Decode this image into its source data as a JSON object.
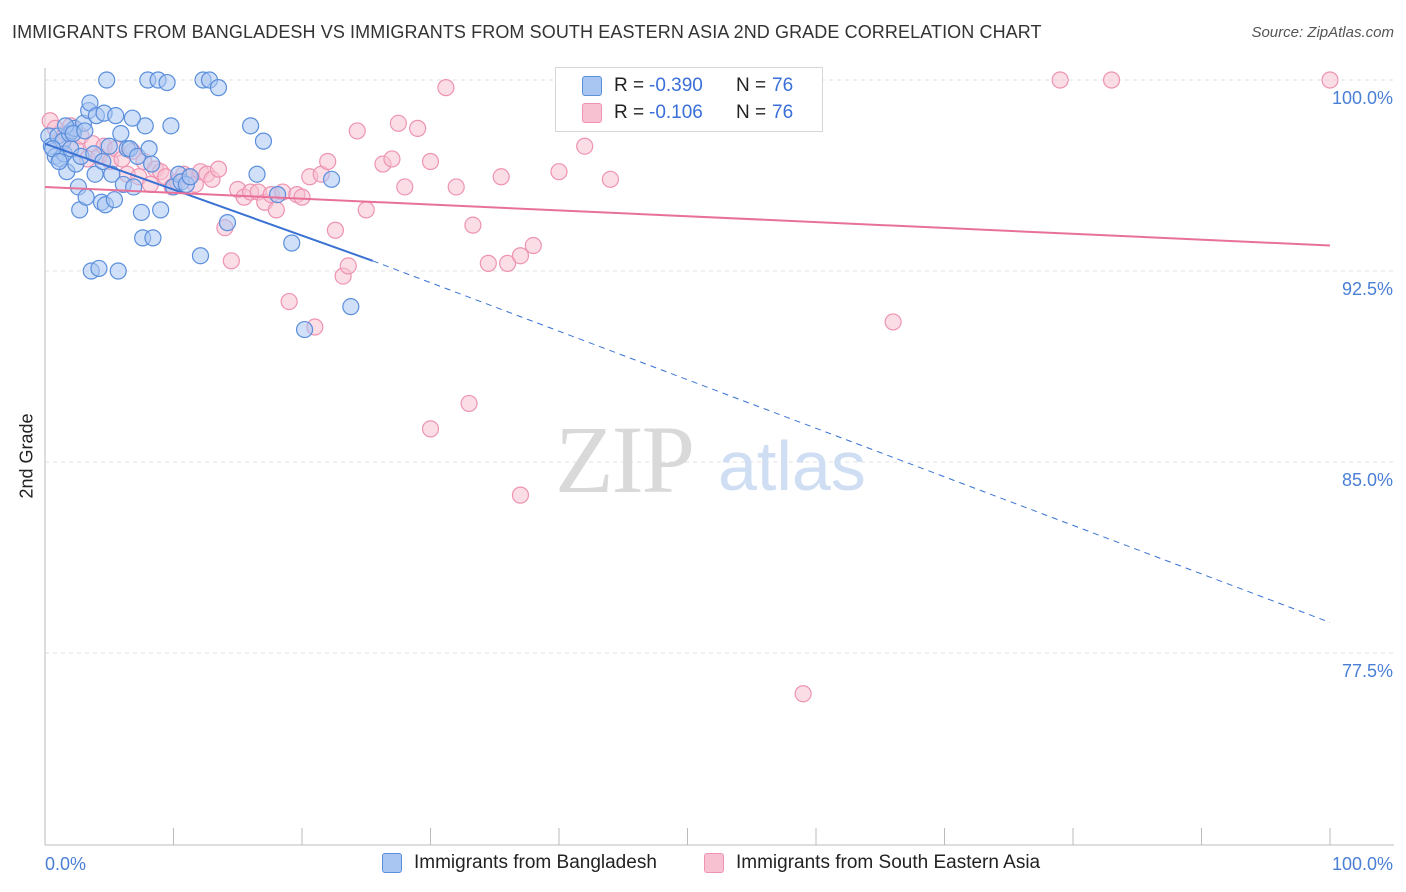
{
  "header": {
    "title": "IMMIGRANTS FROM BANGLADESH VS IMMIGRANTS FROM SOUTH EASTERN ASIA 2ND GRADE CORRELATION CHART",
    "source": "Source: ZipAtlas.com"
  },
  "watermark": {
    "zip": "ZIP",
    "atlas": "atlas"
  },
  "legend": {
    "rows": [
      {
        "r_label": "R =",
        "r_value": "-0.390",
        "n_label": "N =",
        "n_value": "76"
      },
      {
        "r_label": "R =",
        "r_value": "-0.106",
        "n_label": "N =",
        "n_value": "76"
      }
    ]
  },
  "bottom_legend": {
    "series1": "Immigrants from Bangladesh",
    "series2": "Immigrants from South Eastern Asia"
  },
  "colors": {
    "blue_fill": "#a9c6f2",
    "blue_stroke": "#5b8fdc",
    "blue_line": "#3a72d4",
    "pink_fill": "#f7c1d2",
    "pink_stroke": "#ee93b2",
    "pink_line": "#e8719a",
    "axis_text": "#4a7fd6",
    "grid": "#e2e2e2"
  },
  "chart_data": {
    "type": "scatter",
    "title": "IMMIGRANTS FROM BANGLADESH VS IMMIGRANTS FROM SOUTH EASTERN ASIA 2ND GRADE CORRELATION CHART",
    "xlabel": "",
    "ylabel": "2nd Grade",
    "xlim": [
      0,
      100
    ],
    "ylim": [
      70.0,
      101.0
    ],
    "x_tick_labels": [
      {
        "value": 0,
        "label": "0.0%"
      },
      {
        "value": 100,
        "label": "100.0%"
      }
    ],
    "y_ticks": [
      {
        "value": 100.0,
        "label": "100.0%"
      },
      {
        "value": 92.5,
        "label": "92.5%"
      },
      {
        "value": 85.0,
        "label": "85.0%"
      },
      {
        "value": 77.5,
        "label": "77.5%"
      }
    ],
    "grid": true,
    "series": [
      {
        "name": "Immigrants from Bangladesh",
        "color": "blue",
        "r": -0.39,
        "n": 76,
        "trend": {
          "x0": 0,
          "y0": 97.5,
          "x1_solid": 25.5,
          "y1_solid": 92.9,
          "x1": 100,
          "y1": 78.7
        },
        "points": [
          [
            0.3,
            97.8
          ],
          [
            0.5,
            97.4
          ],
          [
            0.8,
            97.0
          ],
          [
            1.0,
            97.8
          ],
          [
            1.2,
            96.9
          ],
          [
            1.4,
            97.6
          ],
          [
            1.5,
            97.1
          ],
          [
            1.7,
            96.4
          ],
          [
            1.9,
            97.9
          ],
          [
            2.0,
            97.3
          ],
          [
            2.1,
            98.0
          ],
          [
            2.3,
            98.1
          ],
          [
            2.4,
            96.7
          ],
          [
            2.6,
            95.8
          ],
          [
            2.7,
            94.9
          ],
          [
            2.8,
            97.0
          ],
          [
            3.0,
            98.3
          ],
          [
            3.2,
            95.4
          ],
          [
            3.4,
            98.8
          ],
          [
            3.5,
            99.1
          ],
          [
            3.6,
            92.5
          ],
          [
            3.8,
            97.1
          ],
          [
            3.9,
            96.3
          ],
          [
            4.0,
            98.6
          ],
          [
            4.2,
            92.6
          ],
          [
            4.4,
            95.2
          ],
          [
            4.6,
            98.7
          ],
          [
            4.7,
            95.1
          ],
          [
            4.8,
            100.0
          ],
          [
            5.0,
            97.4
          ],
          [
            5.2,
            96.3
          ],
          [
            5.4,
            95.3
          ],
          [
            5.5,
            98.6
          ],
          [
            5.7,
            92.5
          ],
          [
            5.9,
            97.9
          ],
          [
            6.1,
            95.9
          ],
          [
            6.4,
            97.3
          ],
          [
            6.6,
            97.3
          ],
          [
            6.9,
            95.8
          ],
          [
            7.2,
            97.0
          ],
          [
            7.5,
            94.8
          ],
          [
            7.6,
            93.8
          ],
          [
            7.8,
            98.2
          ],
          [
            8.0,
            100.0
          ],
          [
            8.1,
            97.3
          ],
          [
            8.3,
            96.7
          ],
          [
            8.4,
            93.8
          ],
          [
            8.8,
            100.0
          ],
          [
            9.0,
            94.9
          ],
          [
            9.5,
            99.9
          ],
          [
            9.8,
            98.2
          ],
          [
            10.0,
            95.8
          ],
          [
            10.4,
            96.3
          ],
          [
            10.6,
            96.0
          ],
          [
            11.0,
            95.9
          ],
          [
            11.3,
            96.2
          ],
          [
            12.1,
            93.1
          ],
          [
            12.3,
            100.0
          ],
          [
            12.8,
            100.0
          ],
          [
            13.5,
            99.7
          ],
          [
            14.2,
            94.4
          ],
          [
            16.0,
            98.2
          ],
          [
            16.5,
            96.3
          ],
          [
            17.0,
            97.6
          ],
          [
            18.1,
            95.5
          ],
          [
            19.2,
            93.6
          ],
          [
            20.2,
            90.2
          ],
          [
            22.3,
            96.1
          ],
          [
            23.8,
            91.1
          ],
          [
            0.6,
            97.3
          ],
          [
            1.1,
            96.8
          ],
          [
            1.6,
            98.2
          ],
          [
            2.2,
            97.9
          ],
          [
            3.1,
            98.0
          ],
          [
            4.5,
            96.8
          ],
          [
            6.8,
            98.5
          ]
        ]
      },
      {
        "name": "Immigrants from South Eastern Asia",
        "color": "pink",
        "r": -0.106,
        "n": 76,
        "trend": {
          "x0": 0,
          "y0": 95.8,
          "x1": 100,
          "y1": 93.5
        },
        "points": [
          [
            0.4,
            98.4
          ],
          [
            0.8,
            98.1
          ],
          [
            1.2,
            97.6
          ],
          [
            1.6,
            97.9
          ],
          [
            2.0,
            98.2
          ],
          [
            2.4,
            97.3
          ],
          [
            2.8,
            97.8
          ],
          [
            3.3,
            96.9
          ],
          [
            3.7,
            97.5
          ],
          [
            4.2,
            97.0
          ],
          [
            4.6,
            97.4
          ],
          [
            5.1,
            96.8
          ],
          [
            5.5,
            97.3
          ],
          [
            6.0,
            96.9
          ],
          [
            6.4,
            96.3
          ],
          [
            6.8,
            97.2
          ],
          [
            7.3,
            96.2
          ],
          [
            7.7,
            96.8
          ],
          [
            8.2,
            95.9
          ],
          [
            8.6,
            96.5
          ],
          [
            9.0,
            96.4
          ],
          [
            9.4,
            96.2
          ],
          [
            9.9,
            95.8
          ],
          [
            10.3,
            96.0
          ],
          [
            10.8,
            96.3
          ],
          [
            11.2,
            96.2
          ],
          [
            11.7,
            95.9
          ],
          [
            12.1,
            96.4
          ],
          [
            12.6,
            96.3
          ],
          [
            13.0,
            96.1
          ],
          [
            13.5,
            96.5
          ],
          [
            14.0,
            94.2
          ],
          [
            14.5,
            92.9
          ],
          [
            15.0,
            95.7
          ],
          [
            15.5,
            95.4
          ],
          [
            16.0,
            95.6
          ],
          [
            16.6,
            95.6
          ],
          [
            17.1,
            95.2
          ],
          [
            17.6,
            95.5
          ],
          [
            18.0,
            94.9
          ],
          [
            18.5,
            95.6
          ],
          [
            19.0,
            91.3
          ],
          [
            19.6,
            95.5
          ],
          [
            20.0,
            95.4
          ],
          [
            20.6,
            96.2
          ],
          [
            21.0,
            90.3
          ],
          [
            21.5,
            96.3
          ],
          [
            22.0,
            96.8
          ],
          [
            22.6,
            94.1
          ],
          [
            23.2,
            92.3
          ],
          [
            23.6,
            92.7
          ],
          [
            24.3,
            98.0
          ],
          [
            25.0,
            94.9
          ],
          [
            26.3,
            96.7
          ],
          [
            27.0,
            96.9
          ],
          [
            27.5,
            98.3
          ],
          [
            28.0,
            95.8
          ],
          [
            29.0,
            98.1
          ],
          [
            30.0,
            96.8
          ],
          [
            31.2,
            99.7
          ],
          [
            32.0,
            95.8
          ],
          [
            33.3,
            94.3
          ],
          [
            34.5,
            92.8
          ],
          [
            35.5,
            96.2
          ],
          [
            36.0,
            92.8
          ],
          [
            37.0,
            93.1
          ],
          [
            38.0,
            93.5
          ],
          [
            40.0,
            96.4
          ],
          [
            42.0,
            97.4
          ],
          [
            44.0,
            96.1
          ],
          [
            66.0,
            90.5
          ],
          [
            79.0,
            100.0
          ],
          [
            83.0,
            100.0
          ],
          [
            100.0,
            100.0
          ],
          [
            30.0,
            86.3
          ],
          [
            33.0,
            87.3
          ]
        ],
        "outliers": [
          [
            37.0,
            83.7
          ],
          [
            59.0,
            75.9
          ]
        ]
      }
    ]
  }
}
